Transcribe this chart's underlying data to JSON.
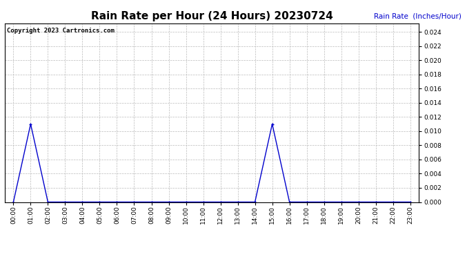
{
  "title": "Rain Rate per Hour (24 Hours) 20230724",
  "copyright_text": "Copyright 2023 Cartronics.com",
  "ylabel": "Rain Rate  (Inches/Hour)",
  "ylabel_color": "#0000cc",
  "background_color": "#ffffff",
  "grid_color": "#bbbbbb",
  "line_color": "#0000cc",
  "marker_color": "#0000cc",
  "ylim": [
    0.0,
    0.0252
  ],
  "yticks": [
    0.0,
    0.002,
    0.004,
    0.006,
    0.008,
    0.01,
    0.012,
    0.014,
    0.016,
    0.018,
    0.02,
    0.022,
    0.024
  ],
  "hours": [
    0,
    1,
    2,
    3,
    4,
    5,
    6,
    7,
    8,
    9,
    10,
    11,
    12,
    13,
    14,
    15,
    16,
    17,
    18,
    19,
    20,
    21,
    22,
    23
  ],
  "values": [
    0.0,
    0.011,
    0.0,
    0.0,
    0.0,
    0.0,
    0.0,
    0.0,
    0.0,
    0.0,
    0.0,
    0.0,
    0.0,
    0.0,
    0.0,
    0.011,
    0.0,
    0.0,
    0.0,
    0.0,
    0.0,
    0.0,
    0.0,
    0.0
  ],
  "title_fontsize": 11,
  "copyright_fontsize": 6.5,
  "ylabel_fontsize": 7.5,
  "tick_fontsize": 6.5,
  "fig_width": 6.9,
  "fig_height": 3.75,
  "dpi": 100
}
